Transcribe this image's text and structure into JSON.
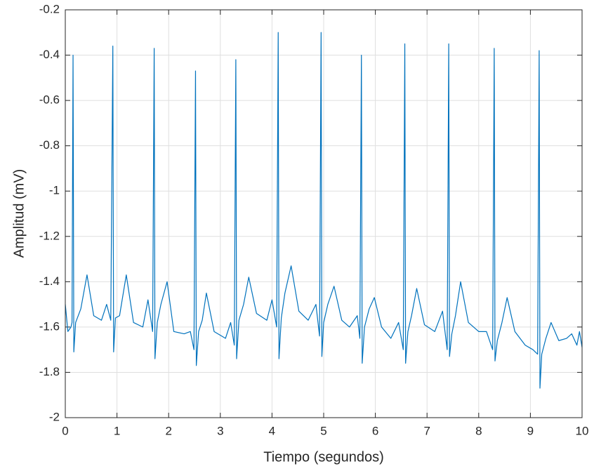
{
  "chart_data": {
    "type": "line",
    "x_label": "Tiempo (segundos)",
    "y_label": "Amplitud (mV)",
    "xlim": [
      0,
      10
    ],
    "ylim": [
      -2,
      -0.2
    ],
    "xticks": [
      0,
      1,
      2,
      3,
      4,
      5,
      6,
      7,
      8,
      9,
      10
    ],
    "yticks": [
      -2,
      -1.8,
      -1.6,
      -1.4,
      -1.2,
      -1,
      -0.8,
      -0.6,
      -0.4,
      -0.2
    ],
    "grid": true,
    "x": [
      0,
      0.05,
      0.11,
      0.13,
      0.15,
      0.165,
      0.2,
      0.3,
      0.42,
      0.55,
      0.7,
      0.8,
      0.88,
      0.92,
      0.935,
      0.97,
      1.05,
      1.18,
      1.32,
      1.5,
      1.6,
      1.69,
      1.72,
      1.735,
      1.78,
      1.85,
      1.97,
      2.1,
      2.3,
      2.42,
      2.49,
      2.52,
      2.535,
      2.58,
      2.65,
      2.73,
      2.88,
      3.1,
      3.2,
      3.27,
      3.3,
      3.315,
      3.36,
      3.45,
      3.55,
      3.7,
      3.9,
      4.0,
      4.09,
      4.12,
      4.135,
      4.18,
      4.25,
      4.37,
      4.52,
      4.7,
      4.85,
      4.92,
      4.95,
      4.965,
      5.0,
      5.08,
      5.2,
      5.35,
      5.5,
      5.65,
      5.7,
      5.73,
      5.745,
      5.79,
      5.88,
      5.98,
      6.12,
      6.3,
      6.45,
      6.54,
      6.57,
      6.585,
      6.63,
      6.7,
      6.8,
      6.95,
      7.15,
      7.3,
      7.39,
      7.42,
      7.435,
      7.48,
      7.55,
      7.65,
      7.8,
      8.0,
      8.15,
      8.27,
      8.3,
      8.315,
      8.36,
      8.45,
      8.55,
      8.7,
      8.9,
      9.05,
      9.14,
      9.17,
      9.185,
      9.22,
      9.3,
      9.4,
      9.55,
      9.7,
      9.8,
      9.9,
      9.95,
      10
    ],
    "series": [
      {
        "color": "#0072bd",
        "values": [
          -1.5,
          -1.62,
          -1.6,
          -1.58,
          -0.4,
          -1.71,
          -1.58,
          -1.52,
          -1.37,
          -1.55,
          -1.57,
          -1.5,
          -1.57,
          -0.36,
          -1.71,
          -1.56,
          -1.55,
          -1.37,
          -1.58,
          -1.6,
          -1.48,
          -1.62,
          -0.37,
          -1.74,
          -1.58,
          -1.5,
          -1.4,
          -1.62,
          -1.63,
          -1.62,
          -1.7,
          -0.47,
          -1.77,
          -1.62,
          -1.57,
          -1.45,
          -1.62,
          -1.65,
          -1.58,
          -1.68,
          -0.42,
          -1.74,
          -1.57,
          -1.5,
          -1.38,
          -1.54,
          -1.57,
          -1.48,
          -1.6,
          -0.3,
          -1.74,
          -1.56,
          -1.45,
          -1.33,
          -1.53,
          -1.57,
          -1.5,
          -1.64,
          -0.3,
          -1.73,
          -1.58,
          -1.5,
          -1.42,
          -1.57,
          -1.6,
          -1.55,
          -1.65,
          -0.4,
          -1.76,
          -1.6,
          -1.52,
          -1.47,
          -1.6,
          -1.65,
          -1.58,
          -1.7,
          -0.35,
          -1.76,
          -1.62,
          -1.55,
          -1.43,
          -1.59,
          -1.62,
          -1.53,
          -1.7,
          -0.35,
          -1.73,
          -1.63,
          -1.55,
          -1.4,
          -1.58,
          -1.62,
          -1.62,
          -1.7,
          -0.37,
          -1.75,
          -1.66,
          -1.58,
          -1.47,
          -1.62,
          -1.68,
          -1.7,
          -1.72,
          -0.38,
          -1.87,
          -1.72,
          -1.65,
          -1.58,
          -1.66,
          -1.65,
          -1.63,
          -1.68,
          -1.62,
          -1.69
        ]
      }
    ]
  }
}
